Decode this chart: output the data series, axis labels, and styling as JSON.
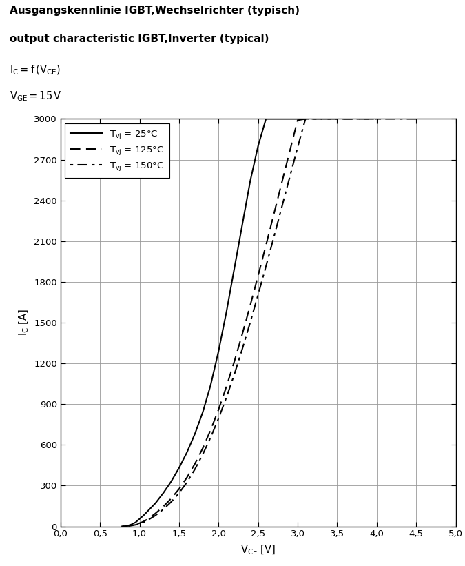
{
  "title_line1": "Ausgangskennlinie IGBT,Wechselrichter (typisch)",
  "title_line2": "output characteristic IGBT,Inverter (typical)",
  "background_color": "#ffffff",
  "grid_color": "#999999",
  "curve_color": "#000000",
  "xlim": [
    0.0,
    5.0
  ],
  "ylim": [
    0,
    3000
  ],
  "xticks": [
    0.0,
    0.5,
    1.0,
    1.5,
    2.0,
    2.5,
    3.0,
    3.5,
    4.0,
    4.5,
    5.0
  ],
  "yticks": [
    0,
    300,
    600,
    900,
    1200,
    1500,
    1800,
    2100,
    2400,
    2700,
    3000
  ],
  "curve25_x": [
    0.8,
    0.85,
    0.9,
    0.95,
    1.0,
    1.05,
    1.1,
    1.2,
    1.3,
    1.4,
    1.5,
    1.6,
    1.7,
    1.8,
    1.9,
    2.0,
    2.1,
    2.2,
    2.3,
    2.4,
    2.5,
    2.6,
    2.7,
    2.8,
    2.9,
    3.0
  ],
  "curve25_y": [
    0,
    5,
    15,
    30,
    55,
    80,
    110,
    170,
    245,
    330,
    430,
    545,
    680,
    840,
    1040,
    1290,
    1580,
    1900,
    2220,
    2540,
    2800,
    3000,
    3000,
    3000,
    3000,
    3000
  ],
  "curve125_x": [
    0.78,
    0.82,
    0.87,
    0.92,
    0.97,
    1.02,
    1.07,
    1.12,
    1.2,
    1.3,
    1.4,
    1.5,
    1.6,
    1.7,
    1.8,
    1.9,
    2.0,
    2.1,
    2.2,
    2.3,
    2.4,
    2.5,
    2.6,
    2.7,
    2.8,
    2.9,
    3.0,
    3.1,
    3.2,
    3.3,
    3.4,
    3.5,
    3.6,
    3.7,
    3.8,
    3.9,
    4.0
  ],
  "curve125_y": [
    0,
    2,
    5,
    10,
    18,
    28,
    42,
    60,
    95,
    145,
    205,
    275,
    360,
    460,
    575,
    710,
    860,
    1030,
    1215,
    1415,
    1625,
    1845,
    2070,
    2300,
    2530,
    2760,
    2990,
    3000,
    3000,
    3000,
    3000,
    3000,
    3000,
    3000,
    3000,
    3000,
    3000
  ],
  "curve150_x": [
    0.77,
    0.81,
    0.86,
    0.91,
    0.96,
    1.01,
    1.06,
    1.11,
    1.2,
    1.3,
    1.4,
    1.5,
    1.6,
    1.7,
    1.8,
    1.9,
    2.0,
    2.1,
    2.2,
    2.3,
    2.4,
    2.5,
    2.6,
    2.7,
    2.8,
    2.9,
    3.0,
    3.1,
    3.2,
    3.3,
    3.4,
    3.5,
    3.6,
    3.7,
    3.8,
    3.9,
    4.0,
    4.1,
    4.2,
    4.3,
    4.4,
    4.5
  ],
  "curve150_y": [
    0,
    1,
    3,
    7,
    13,
    22,
    33,
    48,
    80,
    125,
    180,
    245,
    325,
    420,
    530,
    655,
    795,
    950,
    1120,
    1305,
    1500,
    1705,
    1915,
    2130,
    2350,
    2570,
    2790,
    3000,
    3000,
    3000,
    3000,
    3000,
    3000,
    3000,
    3000,
    3000,
    3000,
    3000,
    3000,
    3000,
    3000,
    3000
  ]
}
